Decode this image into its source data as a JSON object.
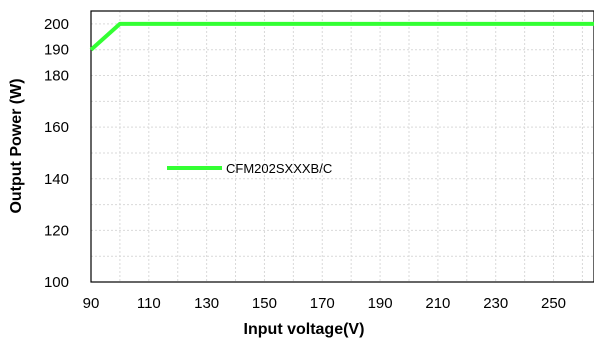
{
  "chart_data": {
    "type": "line",
    "xlabel": "Input voltage(V)",
    "ylabel": "Output Power (W)",
    "xlim": [
      90,
      264
    ],
    "ylim": [
      100,
      205
    ],
    "xticks": [
      90,
      110,
      130,
      150,
      170,
      190,
      210,
      230,
      250
    ],
    "yticks": [
      100,
      120,
      140,
      160,
      180,
      190,
      200
    ],
    "grid": true,
    "legend_position": "center-left",
    "series": [
      {
        "name": "CFM202SXXXB/C",
        "color": "#33ff33",
        "x": [
          90,
          100,
          264
        ],
        "y": [
          190,
          200,
          200
        ]
      }
    ]
  }
}
